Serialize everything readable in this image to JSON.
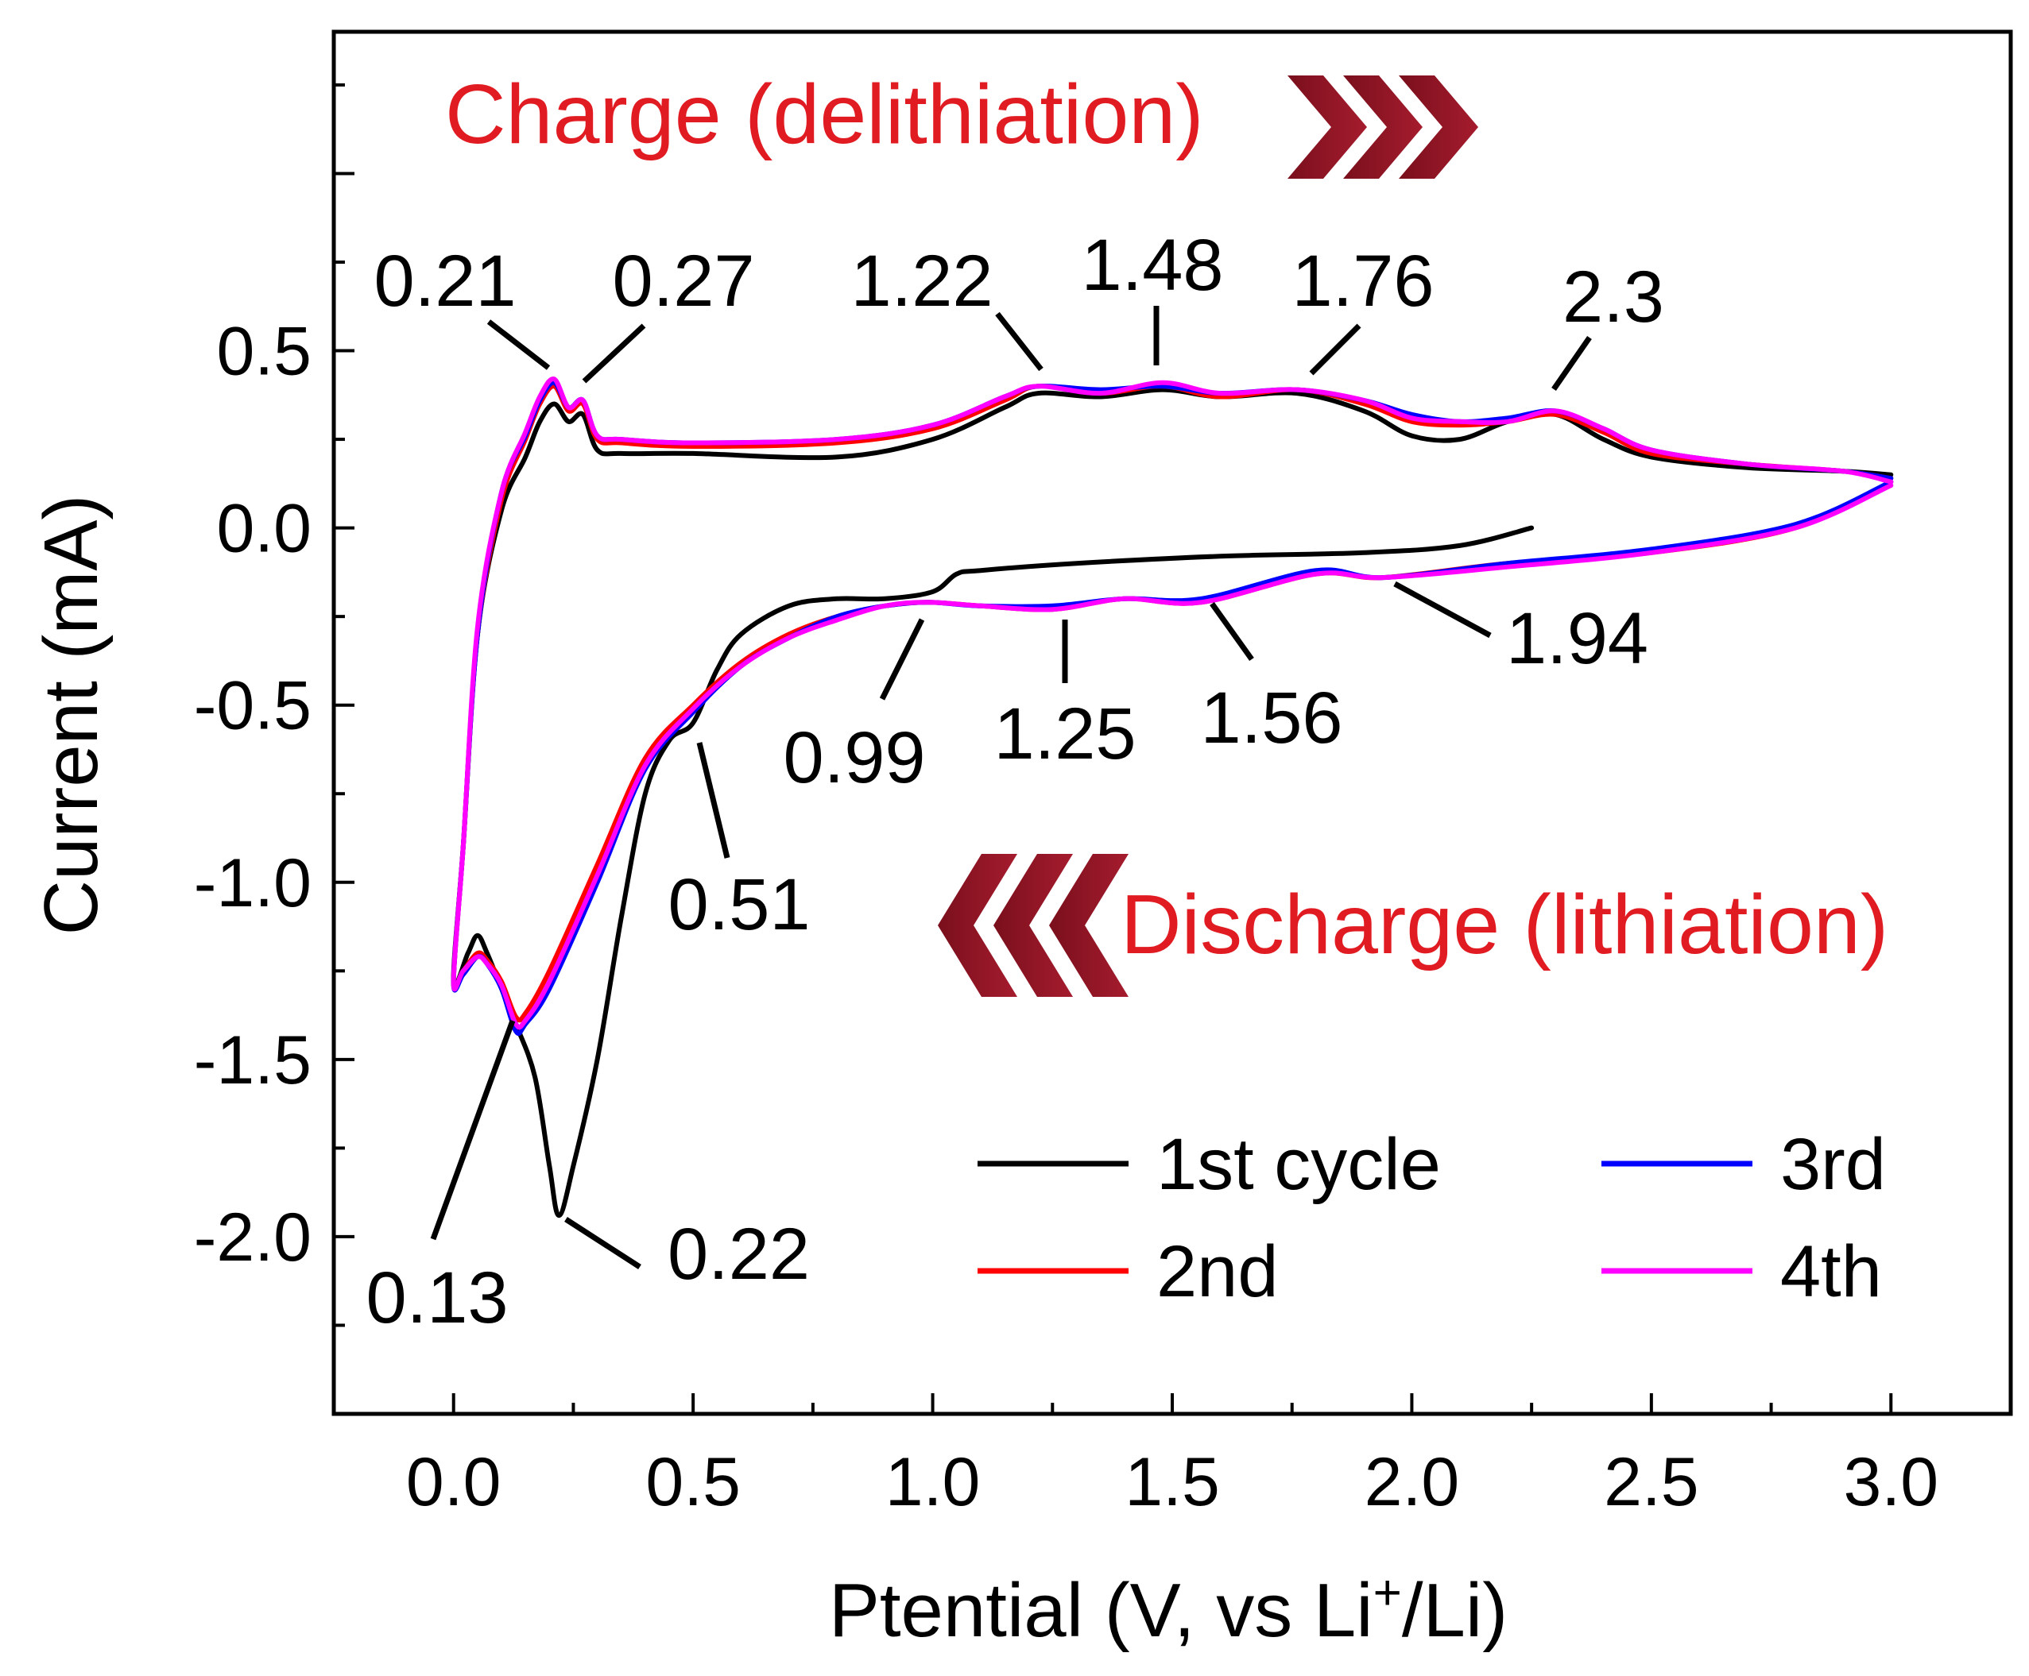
{
  "chart_data": {
    "type": "line",
    "title": "",
    "xlabel": "Ptential (V, vs Li",
    "xlabel_sup": "+",
    "xlabel_suffix": "/Li)",
    "ylabel": "Current (mA)",
    "xlim": [
      -0.25,
      3.25
    ],
    "ylim": [
      -2.5,
      1.4
    ],
    "xticks": [
      0.0,
      0.5,
      1.0,
      1.5,
      2.0,
      2.5,
      3.0
    ],
    "xtick_labels": [
      "0.0",
      "0.5",
      "1.0",
      "1.5",
      "2.0",
      "2.5",
      "3.0"
    ],
    "yticks": [
      0.5,
      0.0,
      -0.5,
      -1.0,
      -1.5,
      -2.0
    ],
    "ytick_labels": [
      "0.5",
      "0.0",
      "-0.5",
      "-1.0",
      "-1.5",
      "-2.0"
    ],
    "grid": false,
    "legend_position": "bottom-right",
    "series": [
      {
        "name": "1st cycle",
        "color": "#000000",
        "x": [
          2.25,
          2.1,
          1.9,
          1.6,
          1.3,
          1.1,
          1.05,
          1.0,
          0.9,
          0.8,
          0.7,
          0.6,
          0.55,
          0.5,
          0.45,
          0.4,
          0.35,
          0.3,
          0.25,
          0.22,
          0.2,
          0.17,
          0.13,
          0.1,
          0.07,
          0.05,
          0.03,
          0.0,
          0.02,
          0.05,
          0.1,
          0.15,
          0.18,
          0.21,
          0.24,
          0.27,
          0.3,
          0.35,
          0.5,
          0.8,
          1.0,
          1.15,
          1.22,
          1.35,
          1.48,
          1.6,
          1.76,
          1.9,
          2.0,
          2.1,
          2.2,
          2.3,
          2.4,
          2.5,
          2.7,
          2.9,
          3.0
        ],
        "y": [
          0.0,
          -0.05,
          -0.07,
          -0.08,
          -0.1,
          -0.12,
          -0.13,
          -0.18,
          -0.2,
          -0.2,
          -0.22,
          -0.3,
          -0.4,
          -0.55,
          -0.6,
          -0.75,
          -1.1,
          -1.5,
          -1.8,
          -1.94,
          -1.8,
          -1.55,
          -1.4,
          -1.3,
          -1.2,
          -1.15,
          -1.2,
          -1.28,
          -0.9,
          -0.3,
          0.05,
          0.2,
          0.3,
          0.35,
          0.3,
          0.32,
          0.22,
          0.21,
          0.21,
          0.2,
          0.25,
          0.34,
          0.38,
          0.37,
          0.39,
          0.37,
          0.38,
          0.33,
          0.26,
          0.25,
          0.3,
          0.32,
          0.25,
          0.2,
          0.17,
          0.16,
          0.15
        ]
      },
      {
        "name": "2nd",
        "color": "#ff0000",
        "x": [
          3.0,
          2.8,
          2.5,
          2.2,
          1.94,
          1.8,
          1.56,
          1.4,
          1.25,
          1.1,
          0.99,
          0.9,
          0.8,
          0.7,
          0.6,
          0.5,
          0.4,
          0.3,
          0.2,
          0.15,
          0.13,
          0.1,
          0.07,
          0.05,
          0.02,
          0.0,
          0.02,
          0.05,
          0.1,
          0.15,
          0.18,
          0.21,
          0.24,
          0.27,
          0.3,
          0.35,
          0.5,
          0.8,
          1.0,
          1.15,
          1.22,
          1.35,
          1.48,
          1.6,
          1.76,
          1.9,
          2.0,
          2.1,
          2.2,
          2.3,
          2.4,
          2.5,
          2.7,
          2.9,
          3.0
        ],
        "y": [
          0.13,
          0.0,
          -0.07,
          -0.1,
          -0.14,
          -0.13,
          -0.21,
          -0.2,
          -0.23,
          -0.22,
          -0.21,
          -0.22,
          -0.25,
          -0.3,
          -0.38,
          -0.5,
          -0.65,
          -0.95,
          -1.25,
          -1.37,
          -1.38,
          -1.28,
          -1.22,
          -1.2,
          -1.25,
          -1.28,
          -0.9,
          -0.3,
          0.08,
          0.25,
          0.35,
          0.4,
          0.33,
          0.35,
          0.25,
          0.24,
          0.23,
          0.24,
          0.28,
          0.36,
          0.4,
          0.38,
          0.4,
          0.37,
          0.39,
          0.35,
          0.3,
          0.29,
          0.3,
          0.32,
          0.27,
          0.21,
          0.18,
          0.16,
          0.14
        ]
      },
      {
        "name": "3rd",
        "color": "#0000ff",
        "x": [
          3.0,
          2.8,
          2.5,
          2.2,
          1.94,
          1.8,
          1.56,
          1.4,
          1.25,
          1.1,
          0.99,
          0.9,
          0.8,
          0.7,
          0.6,
          0.5,
          0.4,
          0.3,
          0.2,
          0.15,
          0.13,
          0.1,
          0.07,
          0.05,
          0.02,
          0.0,
          0.02,
          0.05,
          0.1,
          0.15,
          0.18,
          0.21,
          0.24,
          0.27,
          0.3,
          0.35,
          0.5,
          0.8,
          1.0,
          1.15,
          1.22,
          1.35,
          1.48,
          1.6,
          1.76,
          1.9,
          2.0,
          2.1,
          2.2,
          2.3,
          2.4,
          2.5,
          2.7,
          2.9,
          3.0
        ],
        "y": [
          0.13,
          0.01,
          -0.06,
          -0.1,
          -0.14,
          -0.12,
          -0.2,
          -0.2,
          -0.22,
          -0.22,
          -0.21,
          -0.22,
          -0.25,
          -0.31,
          -0.39,
          -0.52,
          -0.68,
          -1.0,
          -1.3,
          -1.4,
          -1.42,
          -1.3,
          -1.23,
          -1.21,
          -1.26,
          -1.28,
          -0.9,
          -0.3,
          0.1,
          0.26,
          0.36,
          0.41,
          0.34,
          0.36,
          0.26,
          0.25,
          0.24,
          0.25,
          0.29,
          0.37,
          0.4,
          0.39,
          0.4,
          0.38,
          0.39,
          0.36,
          0.32,
          0.3,
          0.31,
          0.33,
          0.28,
          0.22,
          0.18,
          0.16,
          0.14
        ]
      },
      {
        "name": "4th",
        "color": "#ff00ff",
        "x": [
          3.0,
          2.8,
          2.5,
          2.2,
          1.94,
          1.8,
          1.56,
          1.4,
          1.25,
          1.1,
          0.99,
          0.9,
          0.8,
          0.7,
          0.6,
          0.5,
          0.4,
          0.3,
          0.2,
          0.15,
          0.13,
          0.1,
          0.07,
          0.05,
          0.02,
          0.0,
          0.02,
          0.05,
          0.1,
          0.15,
          0.18,
          0.21,
          0.24,
          0.27,
          0.3,
          0.35,
          0.5,
          0.8,
          1.0,
          1.15,
          1.22,
          1.35,
          1.48,
          1.6,
          1.76,
          1.9,
          2.0,
          2.1,
          2.2,
          2.3,
          2.4,
          2.5,
          2.7,
          2.9,
          3.0
        ],
        "y": [
          0.12,
          0.0,
          -0.07,
          -0.11,
          -0.14,
          -0.13,
          -0.21,
          -0.2,
          -0.23,
          -0.22,
          -0.21,
          -0.22,
          -0.26,
          -0.31,
          -0.39,
          -0.51,
          -0.67,
          -0.98,
          -1.28,
          -1.39,
          -1.4,
          -1.29,
          -1.23,
          -1.21,
          -1.25,
          -1.28,
          -0.9,
          -0.28,
          0.1,
          0.27,
          0.37,
          0.42,
          0.34,
          0.36,
          0.26,
          0.25,
          0.24,
          0.25,
          0.29,
          0.37,
          0.4,
          0.38,
          0.41,
          0.38,
          0.39,
          0.36,
          0.31,
          0.3,
          0.3,
          0.33,
          0.28,
          0.22,
          0.18,
          0.16,
          0.13
        ]
      }
    ],
    "annotations": {
      "charge": "Charge (delithiation)",
      "discharge": "Discharge (lithiation)",
      "peaks": [
        {
          "text": "0.21",
          "x": 0.21,
          "y": 0.42
        },
        {
          "text": "0.27",
          "x": 0.27,
          "y": 0.36
        },
        {
          "text": "1.22",
          "x": 1.22,
          "y": 0.4
        },
        {
          "text": "1.48",
          "x": 1.48,
          "y": 0.41
        },
        {
          "text": "1.76",
          "x": 1.76,
          "y": 0.39
        },
        {
          "text": "2.3",
          "x": 2.3,
          "y": 0.33
        },
        {
          "text": "0.99",
          "x": 0.99,
          "y": -0.21
        },
        {
          "text": "1.25",
          "x": 1.25,
          "y": -0.23
        },
        {
          "text": "1.56",
          "x": 1.56,
          "y": -0.21
        },
        {
          "text": "1.94",
          "x": 1.94,
          "y": -0.14
        },
        {
          "text": "0.51",
          "x": 0.51,
          "y": -0.55
        },
        {
          "text": "0.13",
          "x": 0.13,
          "y": -1.4
        },
        {
          "text": "0.22",
          "x": 0.22,
          "y": -1.94
        }
      ]
    }
  }
}
